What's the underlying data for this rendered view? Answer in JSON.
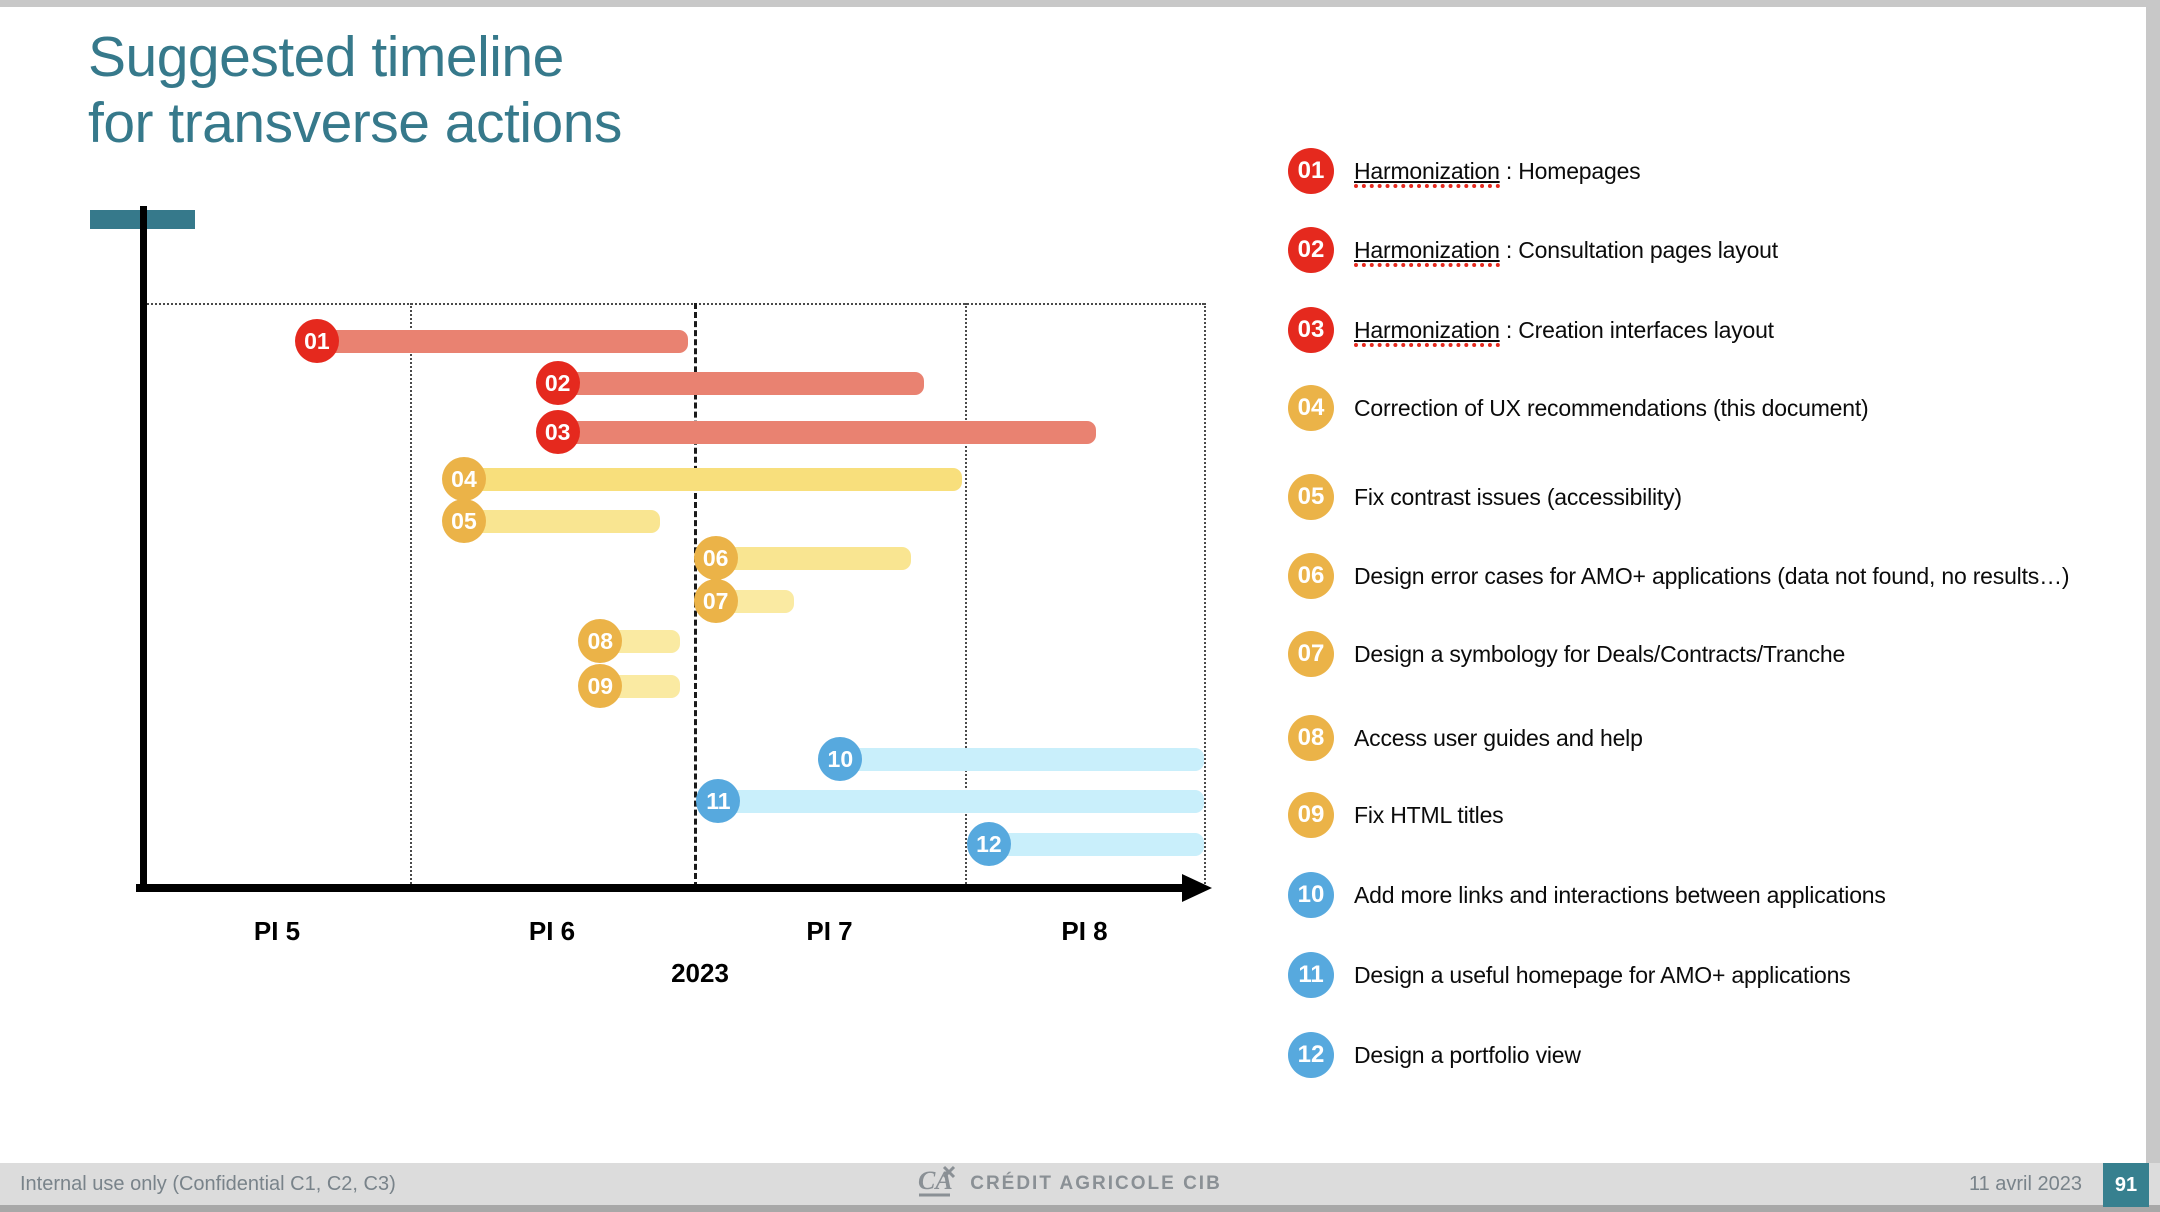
{
  "slide": {
    "title_line1": "Suggested timeline",
    "title_line2": "for transverse actions",
    "accent_color": "#36798B"
  },
  "chart_data": {
    "type": "bar",
    "subtype": "gantt-timeline",
    "title": "Suggested timeline for transverse actions",
    "xlabel": "2023",
    "ylabel": "",
    "x_axis_year": "2023",
    "x_tick_labels": [
      "PI 5",
      "PI 6",
      "PI 7",
      "PI 8"
    ],
    "x_range_pi_units": [
      0,
      4
    ],
    "grid": "dotted separators between PI periods; bold dashed current-date line at PI unit 2.0 (mid-year)",
    "legend_position": "right",
    "colors": {
      "red_badge": "#E5291E",
      "red_bar": "#E98271",
      "yellow_badge": "#EBB348",
      "yellow_bar_dark": "#F8DF7C",
      "yellow_bar": "#F9E591",
      "yellow_bar_light": "#FAEAA2",
      "blue_badge": "#57A9DE",
      "blue_bar": "#C9EFFB"
    },
    "tasks": [
      {
        "id": "01",
        "label": "Harmonization : Homepages",
        "group": "red",
        "start": 0.65,
        "end": 1.98,
        "bar_color": "#E98271"
      },
      {
        "id": "02",
        "label": "Harmonization : Consultation pages layout",
        "group": "red",
        "start": 1.52,
        "end": 2.85,
        "bar_color": "#E98271"
      },
      {
        "id": "03",
        "label": "Harmonization : Creation interfaces layout",
        "group": "red",
        "start": 1.52,
        "end": 3.55,
        "bar_color": "#E98271"
      },
      {
        "id": "04",
        "label": "Correction of UX recommendations (this document)",
        "group": "yellow",
        "start": 1.19,
        "end": 2.99,
        "bar_color": "#F8DF7C"
      },
      {
        "id": "05",
        "label": "Fix contrast issues (accessibility)",
        "group": "yellow",
        "start": 1.19,
        "end": 1.88,
        "bar_color": "#F9E591"
      },
      {
        "id": "06",
        "label": "Design error cases for AMO+ applications (data not found, no results…)",
        "group": "yellow",
        "start": 2.08,
        "end": 2.8,
        "bar_color": "#F9E591"
      },
      {
        "id": "07",
        "label": "Design a symbology for Deals/Contracts/Tranche",
        "group": "yellow",
        "start": 2.08,
        "end": 2.37,
        "bar_color": "#FAEAA2"
      },
      {
        "id": "08",
        "label": "Access user guides and help",
        "group": "yellow",
        "start": 1.67,
        "end": 1.95,
        "bar_color": "#FAEAA2"
      },
      {
        "id": "09",
        "label": "Fix HTML titles",
        "group": "yellow",
        "start": 1.67,
        "end": 1.95,
        "bar_color": "#FAEAA2"
      },
      {
        "id": "10",
        "label": "Add more links and interactions between applications",
        "group": "blue",
        "start": 2.54,
        "end": 4.0,
        "bar_color": "#C9EFFB"
      },
      {
        "id": "11",
        "label": "Design a useful homepage for AMO+ applications",
        "group": "blue",
        "start": 2.09,
        "end": 4.0,
        "bar_color": "#C9EFFB"
      },
      {
        "id": "12",
        "label": "Design a portfolio view",
        "group": "blue",
        "start": 3.1,
        "end": 4.0,
        "bar_color": "#C9EFFB"
      }
    ]
  },
  "legend": {
    "underline_color": "#E5291E",
    "items": [
      {
        "num": "01",
        "group": "red",
        "underlined": "Harmonization",
        "text": " : Homepages"
      },
      {
        "num": "02",
        "group": "red",
        "underlined": "Harmonization",
        "text": " : Consultation pages layout"
      },
      {
        "num": "03",
        "group": "red",
        "underlined": "Harmonization",
        "text": " : Creation interfaces layout"
      },
      {
        "num": "04",
        "group": "yellow",
        "underlined": null,
        "text": "Correction of UX recommendations (this document)"
      },
      {
        "num": "05",
        "group": "yellow",
        "underlined": null,
        "text": "Fix contrast issues (accessibility)"
      },
      {
        "num": "06",
        "group": "yellow",
        "underlined": null,
        "text": "Design error cases for AMO+ applications (data not found, no results…)"
      },
      {
        "num": "07",
        "group": "yellow",
        "underlined": null,
        "text": "Design a symbology for Deals/Contracts/Tranche"
      },
      {
        "num": "08",
        "group": "yellow",
        "underlined": null,
        "text": "Access user guides and help"
      },
      {
        "num": "09",
        "group": "yellow",
        "underlined": null,
        "text": "Fix HTML titles"
      },
      {
        "num": "10",
        "group": "blue",
        "underlined": null,
        "text": "Add more links and interactions between applications"
      },
      {
        "num": "11",
        "group": "blue",
        "underlined": null,
        "text": "Design a useful homepage for AMO+ applications"
      },
      {
        "num": "12",
        "group": "blue",
        "underlined": null,
        "text": "Design a portfolio view"
      }
    ]
  },
  "footer": {
    "confidential": "Internal use only (Confidential C1, C2, C3)",
    "brand": "CRÉDIT AGRICOLE CIB",
    "logo_icon": "credit-agricole-logo",
    "date": "11 avril 2023",
    "page": "91"
  }
}
